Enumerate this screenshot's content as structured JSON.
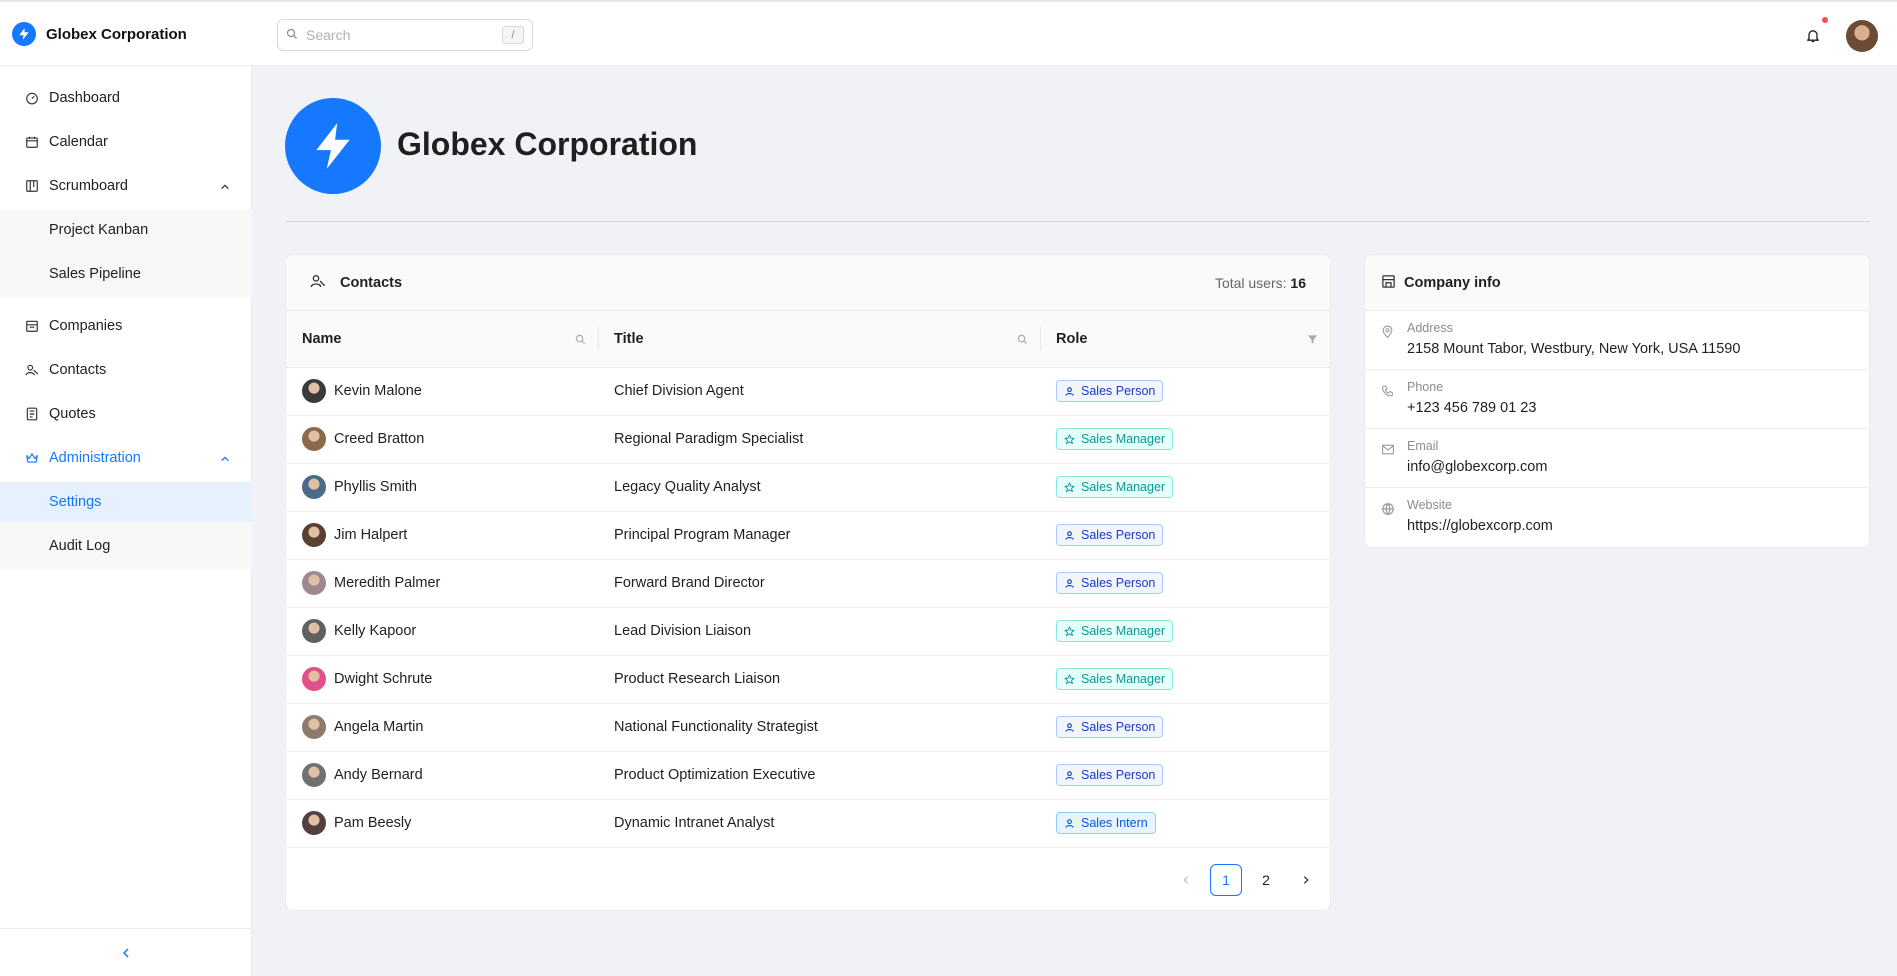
{
  "app": {
    "brand_name": "Globex Corporation",
    "accent": "#1677ff"
  },
  "topbar": {
    "search_placeholder": "Search",
    "search_shortcut": "/"
  },
  "sidebar": {
    "items": [
      {
        "label": "Dashboard",
        "icon": "dashboard-icon"
      },
      {
        "label": "Calendar",
        "icon": "calendar-icon"
      },
      {
        "label": "Scrumboard",
        "icon": "scrumboard-icon"
      },
      {
        "label": "Project Kanban"
      },
      {
        "label": "Sales Pipeline"
      },
      {
        "label": "Companies",
        "icon": "companies-icon"
      },
      {
        "label": "Contacts",
        "icon": "contacts-icon"
      },
      {
        "label": "Quotes",
        "icon": "quotes-icon"
      },
      {
        "label": "Administration",
        "icon": "crown-icon"
      },
      {
        "label": "Settings"
      },
      {
        "label": "Audit Log"
      }
    ]
  },
  "header": {
    "company_name": "Globex Corporation"
  },
  "contacts": {
    "title": "Contacts",
    "total_label": "Total users:",
    "total_count": "16",
    "columns": [
      "Name",
      "Title",
      "Role"
    ],
    "rows": [
      {
        "name": "Kevin Malone",
        "title": "Chief Division Agent",
        "role": "Sales Person",
        "role_type": "person",
        "avatar_color": "#3a3a3a"
      },
      {
        "name": "Creed Bratton",
        "title": "Regional Paradigm Specialist",
        "role": "Sales Manager",
        "role_type": "manager",
        "avatar_color": "#8a6a4a"
      },
      {
        "name": "Phyllis Smith",
        "title": "Legacy Quality Analyst",
        "role": "Sales Manager",
        "role_type": "manager",
        "avatar_color": "#4a6a8a"
      },
      {
        "name": "Jim Halpert",
        "title": "Principal Program Manager",
        "role": "Sales Person",
        "role_type": "person",
        "avatar_color": "#5a4030"
      },
      {
        "name": "Meredith Palmer",
        "title": "Forward Brand Director",
        "role": "Sales Person",
        "role_type": "person",
        "avatar_color": "#a08890"
      },
      {
        "name": "Kelly Kapoor",
        "title": "Lead Division Liaison",
        "role": "Sales Manager",
        "role_type": "manager",
        "avatar_color": "#606060"
      },
      {
        "name": "Dwight Schrute",
        "title": "Product Research Liaison",
        "role": "Sales Manager",
        "role_type": "manager",
        "avatar_color": "#e0508a"
      },
      {
        "name": "Angela Martin",
        "title": "National Functionality Strategist",
        "role": "Sales Person",
        "role_type": "person",
        "avatar_color": "#8a7a70"
      },
      {
        "name": "Andy Bernard",
        "title": "Product Optimization Executive",
        "role": "Sales Person",
        "role_type": "person",
        "avatar_color": "#707070"
      },
      {
        "name": "Pam Beesly",
        "title": "Dynamic Intranet Analyst",
        "role": "Sales Intern",
        "role_type": "intern",
        "avatar_color": "#504040"
      }
    ],
    "pagination": {
      "pages": [
        "1",
        "2"
      ],
      "current": "1"
    }
  },
  "company_info": {
    "title": "Company info",
    "fields": [
      {
        "label": "Address",
        "value": "2158 Mount Tabor, Westbury, New York, USA 11590",
        "icon": "location-icon"
      },
      {
        "label": "Phone",
        "value": "+123 456 789 01 23",
        "icon": "phone-icon"
      },
      {
        "label": "Email",
        "value": "info@globexcorp.com",
        "icon": "mail-icon"
      },
      {
        "label": "Website",
        "value": "https://globexcorp.com",
        "icon": "globe-icon"
      }
    ]
  }
}
